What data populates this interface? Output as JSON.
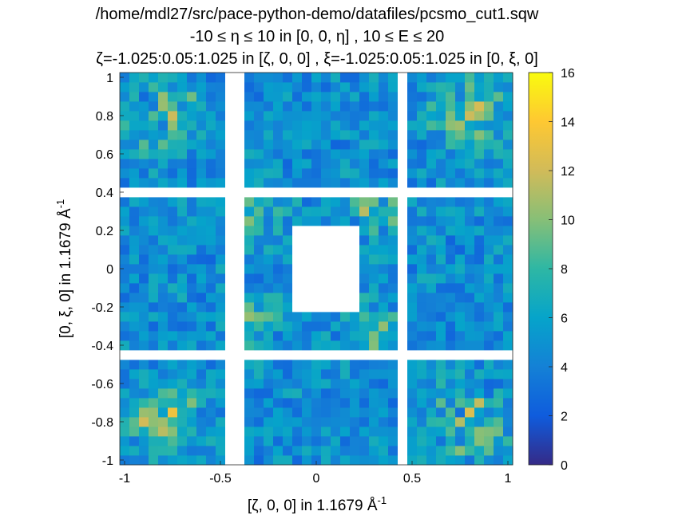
{
  "chart_data": {
    "type": "heatmap",
    "title": [
      "/home/mdl27/src/pace-python-demo/datafiles/pcsmo_cut1.sqw",
      "-10 ≤ η ≤ 10 in [0, 0, η] , 10 ≤ E ≤ 20",
      "ζ=-1.025:0.05:1.025 in [ζ, 0, 0] , ξ=-1.025:0.05:1.025 in [0, ξ, 0]"
    ],
    "xlabel": "[ζ, 0, 0] in 1.1679 Å",
    "ylabel": "[0, ξ, 0] in 1.1679 Å",
    "label_superscript": "-1",
    "xlim": [
      -1.025,
      1.025
    ],
    "ylim": [
      -1.025,
      1.025
    ],
    "bin_width": 0.05,
    "xticks": [
      -1,
      -0.5,
      0,
      0.5,
      1
    ],
    "xtick_labels": [
      "-1",
      "-0.5",
      "0",
      "0.5",
      "1"
    ],
    "yticks": [
      1,
      0.8,
      0.6,
      0.4,
      0.2,
      0,
      -0.2,
      -0.4,
      -0.6,
      -0.8,
      -1
    ],
    "ytick_labels": [
      "1",
      "0.8",
      "0.6",
      "0.4",
      "0.2",
      "0",
      "-0.2",
      "-0.4",
      "-0.6",
      "-0.8",
      "-1"
    ],
    "colorbar": {
      "clim": [
        0,
        16
      ],
      "ticks": [
        0,
        2,
        4,
        6,
        8,
        10,
        12,
        14,
        16
      ],
      "tick_labels": [
        "0",
        "2",
        "4",
        "6",
        "8",
        "10",
        "12",
        "14",
        "16"
      ],
      "colormap": "parula",
      "colormap_stops": [
        "#352a87",
        "#0f5cdd",
        "#1481d6",
        "#06a4ca",
        "#2eb7a4",
        "#87bf77",
        "#d1bb59",
        "#fec832",
        "#f9fb0e"
      ]
    },
    "mask_value": "NaN",
    "mask_color": "#ffffff",
    "masked_regions_data_units": {
      "columns_x": [
        [
          -0.475,
          -0.375
        ],
        [
          0.425,
          0.475
        ]
      ],
      "rows_y": [
        [
          0.375,
          0.425
        ],
        [
          -0.475,
          -0.425
        ]
      ],
      "central_hole": [
        [
          -0.125,
          0.225
        ],
        [
          -0.225,
          0.225
        ]
      ]
    },
    "values_note_visible": "intensity per 0.05 × 0.05 bin, 41 × 41 grid, high intensity clusters near (±0.8, ±0.8)"
  }
}
